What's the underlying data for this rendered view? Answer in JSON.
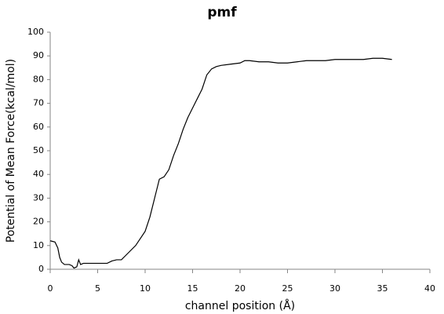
{
  "chart_data": {
    "type": "line",
    "title": "pmf",
    "x_label": "channel position (Å)",
    "y_label": "Potential of Mean Force(kcal/mol)",
    "x": [
      0,
      0.5,
      0.8,
      1,
      1.2,
      1.5,
      2,
      2.3,
      2.5,
      2.8,
      3,
      3.2,
      3.5,
      4,
      5,
      6,
      6.5,
      7,
      7.5,
      8,
      9,
      10,
      10.5,
      11,
      11.5,
      12,
      12.5,
      13,
      13.5,
      14,
      14.5,
      15,
      15.5,
      16,
      16.5,
      17,
      17.5,
      18,
      19,
      20,
      20.5,
      21,
      22,
      23,
      24,
      25,
      26,
      27,
      28,
      29,
      30,
      31,
      32,
      33,
      34,
      35,
      36
    ],
    "series": [
      {
        "name": "pmf",
        "color": "#000000",
        "values": [
          12,
          11.5,
          9,
          5,
          3,
          2,
          2,
          1.5,
          0.5,
          1,
          4,
          2,
          2.5,
          2.5,
          2.5,
          2.5,
          3.5,
          4,
          4,
          6,
          10,
          16,
          22,
          30,
          38,
          39,
          42,
          48,
          53,
          59,
          64,
          68,
          72,
          76,
          82,
          84.5,
          85.5,
          86,
          86.5,
          87,
          88,
          88,
          87.5,
          87.5,
          87,
          87,
          87.5,
          88,
          88,
          88,
          88.5,
          88.5,
          88.5,
          88.5,
          89,
          89,
          88.5
        ]
      }
    ],
    "xlim": [
      0,
      40
    ],
    "xticks": [
      0,
      5,
      10,
      15,
      20,
      25,
      30,
      35,
      40
    ],
    "ylim": [
      0,
      100
    ],
    "yticks": [
      0,
      10,
      20,
      30,
      40,
      50,
      60,
      70,
      80,
      90,
      100
    ],
    "grid": false
  }
}
